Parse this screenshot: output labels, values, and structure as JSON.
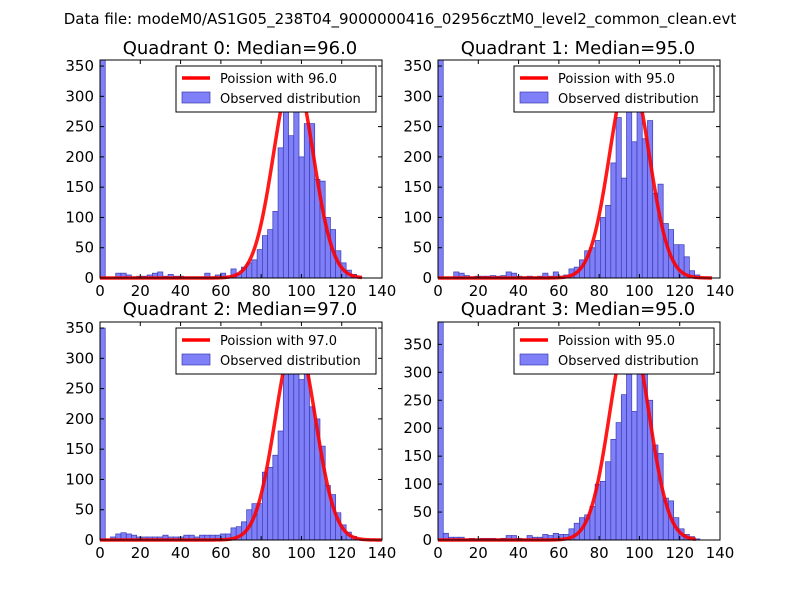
{
  "suptitle": "Data file: modeM0/AS1G05_238T04_9000000416_02956cztM0_level2_common_clean.evt",
  "colors": {
    "bar_fill": "#7f7ff7",
    "bar_edge": "#3b3bb4",
    "curve": "#ff0000",
    "axes": "#000000",
    "background": "#ffffff"
  },
  "chart_data": [
    {
      "type": "bar",
      "title": "Quadrant 0: Median=96.0",
      "xlim": [
        0,
        140
      ],
      "ylim": [
        0,
        360
      ],
      "xticks": [
        "0",
        "20",
        "40",
        "60",
        "80",
        "100",
        "120",
        "140"
      ],
      "yticks": [
        "0",
        "50",
        "100",
        "150",
        "200",
        "250",
        "300",
        "350"
      ],
      "bin_width": 2.6,
      "bins": [
        [
          0,
          360
        ],
        [
          7.8,
          8
        ],
        [
          10.4,
          8
        ],
        [
          13,
          5
        ],
        [
          15.6,
          2
        ],
        [
          18.2,
          3
        ],
        [
          20.8,
          3
        ],
        [
          23.4,
          5
        ],
        [
          26,
          8
        ],
        [
          28.6,
          10
        ],
        [
          31.2,
          3
        ],
        [
          33.8,
          6
        ],
        [
          36.4,
          3
        ],
        [
          39,
          3
        ],
        [
          41.6,
          2
        ],
        [
          44.2,
          2
        ],
        [
          46.8,
          2
        ],
        [
          49.4,
          2
        ],
        [
          52,
          8
        ],
        [
          54.6,
          2
        ],
        [
          57.2,
          5
        ],
        [
          59.8,
          8
        ],
        [
          62.4,
          3
        ],
        [
          65,
          15
        ],
        [
          67.6,
          7
        ],
        [
          70.2,
          18
        ],
        [
          72.8,
          25
        ],
        [
          75.4,
          30
        ],
        [
          78,
          47
        ],
        [
          80.6,
          70
        ],
        [
          83.2,
          80
        ],
        [
          85.8,
          110
        ],
        [
          88.4,
          215
        ],
        [
          91,
          285
        ],
        [
          93.6,
          235
        ],
        [
          96.2,
          330
        ],
        [
          98.8,
          200
        ],
        [
          101.4,
          255
        ],
        [
          104,
          255
        ],
        [
          106.6,
          163
        ],
        [
          109.2,
          160
        ],
        [
          111.8,
          100
        ],
        [
          114.4,
          80
        ],
        [
          117,
          45
        ],
        [
          119.6,
          25
        ],
        [
          122.2,
          13
        ],
        [
          124.8,
          6
        ],
        [
          127.4,
          2
        ]
      ],
      "legend": {
        "curve_label": "Poission with 96.0",
        "bar_label": "Observed distribution",
        "location": "upper right"
      },
      "poisson_mean": 96.0,
      "poisson_peak": 340,
      "curve_x_range": [
        0,
        130
      ]
    },
    {
      "type": "bar",
      "title": "Quadrant 1: Median=95.0",
      "xlim": [
        0,
        140
      ],
      "ylim": [
        0,
        360
      ],
      "xticks": [
        "0",
        "20",
        "40",
        "60",
        "80",
        "100",
        "120",
        "140"
      ],
      "yticks": [
        "0",
        "50",
        "100",
        "150",
        "200",
        "250",
        "300",
        "350"
      ],
      "bin_width": 2.6,
      "bins": [
        [
          0,
          360
        ],
        [
          7.8,
          10
        ],
        [
          10.4,
          8
        ],
        [
          13,
          4
        ],
        [
          15.6,
          2
        ],
        [
          18.2,
          3
        ],
        [
          20.8,
          3
        ],
        [
          23.4,
          3
        ],
        [
          26,
          4
        ],
        [
          28.6,
          3
        ],
        [
          31.2,
          4
        ],
        [
          33.8,
          10
        ],
        [
          36.4,
          8
        ],
        [
          39,
          3
        ],
        [
          41.6,
          2
        ],
        [
          44.2,
          3
        ],
        [
          46.8,
          2
        ],
        [
          49.4,
          3
        ],
        [
          52,
          8
        ],
        [
          54.6,
          3
        ],
        [
          57.2,
          10
        ],
        [
          59.8,
          3
        ],
        [
          62.4,
          5
        ],
        [
          65,
          15
        ],
        [
          67.6,
          18
        ],
        [
          70.2,
          30
        ],
        [
          72.8,
          45
        ],
        [
          75.4,
          50
        ],
        [
          78,
          62
        ],
        [
          80.6,
          100
        ],
        [
          83.2,
          120
        ],
        [
          85.8,
          190
        ],
        [
          88.4,
          265
        ],
        [
          91,
          165
        ],
        [
          93.6,
          310
        ],
        [
          96.2,
          225
        ],
        [
          98.8,
          330
        ],
        [
          101.4,
          230
        ],
        [
          104,
          260
        ],
        [
          106.6,
          140
        ],
        [
          109.2,
          155
        ],
        [
          111.8,
          90
        ],
        [
          114.4,
          80
        ],
        [
          117,
          55
        ],
        [
          119.6,
          55
        ],
        [
          122.2,
          35
        ],
        [
          124.8,
          12
        ],
        [
          127.4,
          5
        ]
      ],
      "legend": {
        "curve_label": "Poission with 95.0",
        "bar_label": "Observed distribution",
        "location": "upper right"
      },
      "poisson_mean": 95.0,
      "poisson_peak": 340,
      "curve_x_range": [
        0,
        136
      ]
    },
    {
      "type": "bar",
      "title": "Quadrant 2: Median=97.0",
      "xlim": [
        0,
        140
      ],
      "ylim": [
        0,
        360
      ],
      "xticks": [
        "0",
        "20",
        "40",
        "60",
        "80",
        "100",
        "120",
        "140"
      ],
      "yticks": [
        "0",
        "50",
        "100",
        "150",
        "200",
        "250",
        "300",
        "350"
      ],
      "bin_width": 2.6,
      "bins": [
        [
          0,
          350
        ],
        [
          5.2,
          5
        ],
        [
          7.8,
          10
        ],
        [
          10.4,
          12
        ],
        [
          13,
          10
        ],
        [
          15.6,
          8
        ],
        [
          18.2,
          5
        ],
        [
          20.8,
          5
        ],
        [
          23.4,
          5
        ],
        [
          26,
          5
        ],
        [
          28.6,
          5
        ],
        [
          31.2,
          8
        ],
        [
          33.8,
          5
        ],
        [
          36.4,
          5
        ],
        [
          39,
          5
        ],
        [
          41.6,
          8
        ],
        [
          44.2,
          8
        ],
        [
          46.8,
          5
        ],
        [
          49.4,
          8
        ],
        [
          52,
          8
        ],
        [
          54.6,
          8
        ],
        [
          57.2,
          8
        ],
        [
          59.8,
          10
        ],
        [
          62.4,
          10
        ],
        [
          65,
          20
        ],
        [
          67.6,
          22
        ],
        [
          70.2,
          30
        ],
        [
          72.8,
          50
        ],
        [
          75.4,
          60
        ],
        [
          78,
          60
        ],
        [
          80.6,
          112
        ],
        [
          83.2,
          120
        ],
        [
          85.8,
          140
        ],
        [
          88.4,
          180
        ],
        [
          91,
          290
        ],
        [
          93.6,
          335
        ],
        [
          96.2,
          330
        ],
        [
          98.8,
          265
        ],
        [
          101.4,
          285
        ],
        [
          104,
          220
        ],
        [
          106.6,
          200
        ],
        [
          109.2,
          155
        ],
        [
          111.8,
          90
        ],
        [
          114.4,
          75
        ],
        [
          117,
          45
        ],
        [
          119.6,
          25
        ],
        [
          122.2,
          13
        ],
        [
          124.8,
          6
        ],
        [
          127.4,
          2
        ]
      ],
      "legend": {
        "curve_label": "Poission with 97.0",
        "bar_label": "Observed distribution",
        "location": "upper right"
      },
      "poisson_mean": 97.0,
      "poisson_peak": 335,
      "curve_x_range": [
        0,
        140
      ]
    },
    {
      "type": "bar",
      "title": "Quadrant 3: Median=95.0",
      "xlim": [
        0,
        140
      ],
      "ylim": [
        0,
        390
      ],
      "xticks": [
        "0",
        "20",
        "40",
        "60",
        "80",
        "100",
        "120",
        "140"
      ],
      "yticks": [
        "0",
        "50",
        "100",
        "150",
        "200",
        "250",
        "300",
        "350"
      ],
      "bin_width": 2.6,
      "bins": [
        [
          0,
          390
        ],
        [
          2.6,
          12
        ],
        [
          5.2,
          5
        ],
        [
          7.8,
          5
        ],
        [
          10.4,
          5
        ],
        [
          13,
          2
        ],
        [
          15.6,
          3
        ],
        [
          18.2,
          2
        ],
        [
          20.8,
          3
        ],
        [
          23.4,
          3
        ],
        [
          26,
          3
        ],
        [
          28.6,
          2
        ],
        [
          31.2,
          3
        ],
        [
          33.8,
          8
        ],
        [
          36.4,
          8
        ],
        [
          39,
          3
        ],
        [
          41.6,
          2
        ],
        [
          44.2,
          8
        ],
        [
          46.8,
          5
        ],
        [
          49.4,
          5
        ],
        [
          52,
          10
        ],
        [
          54.6,
          8
        ],
        [
          57.2,
          12
        ],
        [
          59.8,
          10
        ],
        [
          62.4,
          10
        ],
        [
          65,
          20
        ],
        [
          67.6,
          30
        ],
        [
          70.2,
          40
        ],
        [
          72.8,
          45
        ],
        [
          75.4,
          60
        ],
        [
          78,
          100
        ],
        [
          80.6,
          105
        ],
        [
          83.2,
          140
        ],
        [
          85.8,
          180
        ],
        [
          88.4,
          210
        ],
        [
          91,
          260
        ],
        [
          93.6,
          330
        ],
        [
          96.2,
          230
        ],
        [
          98.8,
          370
        ],
        [
          101.4,
          300
        ],
        [
          104,
          250
        ],
        [
          106.6,
          170
        ],
        [
          109.2,
          155
        ],
        [
          111.8,
          75
        ],
        [
          114.4,
          70
        ],
        [
          117,
          40
        ],
        [
          119.6,
          20
        ],
        [
          122.2,
          10
        ],
        [
          124.8,
          6
        ],
        [
          127.4,
          2
        ]
      ],
      "legend": {
        "curve_label": "Poission with 95.0",
        "bar_label": "Observed distribution",
        "location": "upper right"
      },
      "poisson_mean": 95.0,
      "poisson_peak": 375,
      "curve_x_range": [
        0,
        128
      ]
    }
  ]
}
